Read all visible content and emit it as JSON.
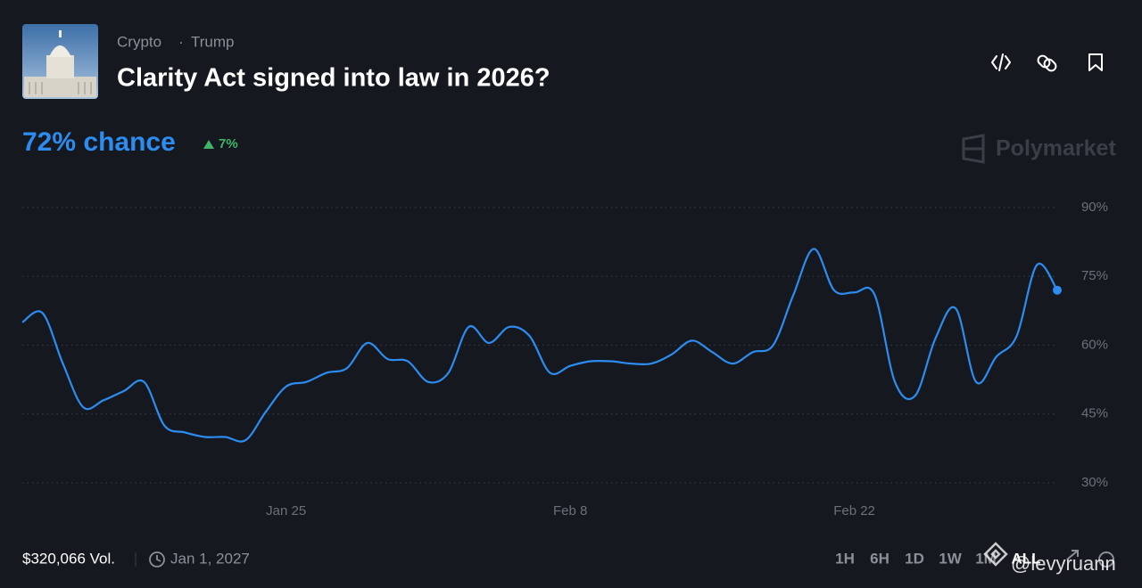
{
  "header": {
    "tags": [
      "Crypto",
      "Trump"
    ],
    "title": "Clarity Act signed into law in 2026?"
  },
  "summary": {
    "chance": "72% chance",
    "change": "7%"
  },
  "brand": "Polymarket",
  "chart_data": {
    "type": "line",
    "categories": [
      null,
      null,
      null,
      null,
      null,
      null,
      null,
      null,
      null,
      null,
      null,
      null,
      null,
      "Jan 25",
      null,
      null,
      null,
      null,
      null,
      null,
      null,
      null,
      null,
      null,
      null,
      null,
      null,
      "Feb 8",
      null,
      null,
      null,
      null,
      null,
      null,
      null,
      null,
      null,
      null,
      null,
      null,
      null,
      "Feb 22",
      null,
      null,
      null,
      null,
      null,
      null,
      null,
      null,
      null,
      null
    ],
    "values": [
      65,
      67,
      56,
      46.5,
      48,
      50,
      52,
      42.5,
      41,
      40,
      40,
      39.3,
      45.5,
      51,
      52,
      54,
      55,
      60.5,
      57,
      56.5,
      52,
      54,
      64,
      60.5,
      64,
      62,
      54,
      55.5,
      56.5,
      56.5,
      56,
      56,
      58,
      61,
      58.5,
      56,
      58.5,
      60,
      71,
      81,
      72,
      71.5,
      71,
      52,
      49,
      61.5,
      68,
      52,
      57.5,
      62,
      77.5,
      72
    ],
    "color": "#2d8cf0",
    "ylim": [
      30,
      90
    ],
    "yticks": [
      {
        "value": 30,
        "label": "30%"
      },
      {
        "value": 45,
        "label": "45%"
      },
      {
        "value": 60,
        "label": "60%"
      },
      {
        "value": 75,
        "label": "75%"
      },
      {
        "value": 90,
        "label": "90%"
      }
    ],
    "grid": true
  },
  "footer": {
    "volume": "$320,066 Vol.",
    "end_date": "Jan 1, 2027",
    "ranges": [
      "1H",
      "6H",
      "1D",
      "1W",
      "1M",
      "ALL"
    ]
  },
  "watermark": "@levyruann"
}
